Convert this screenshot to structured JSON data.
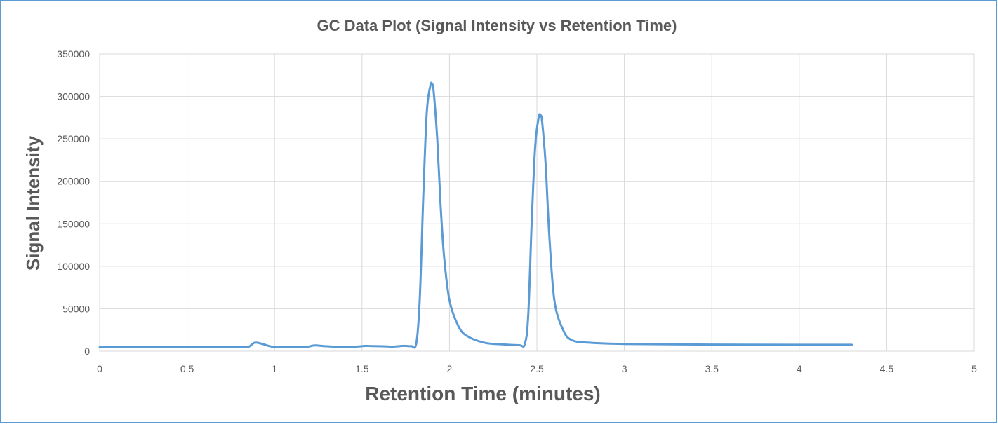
{
  "chart_data": {
    "type": "line",
    "title": "GC Data Plot (Signal Intensity vs Retention Time)",
    "xlabel": "Retention Time (minutes)",
    "ylabel": "Signal Intensity",
    "xlim": [
      0,
      5
    ],
    "ylim": [
      0,
      350000
    ],
    "x_ticks": [
      "0",
      "0.5",
      "1",
      "1.5",
      "2",
      "2.5",
      "3",
      "3.5",
      "4",
      "4.5",
      "5"
    ],
    "y_ticks": [
      "0",
      "50000",
      "100000",
      "150000",
      "200000",
      "250000",
      "300000",
      "350000"
    ],
    "grid": true,
    "legend": "none",
    "colors": {
      "series": "#5b9bd5",
      "grid": "#d9d9d9",
      "frame": "#5b9bd5",
      "title": "#595959",
      "tick": "#595959"
    },
    "series": [
      {
        "x": [
          0,
          0.2,
          0.4,
          0.6,
          0.8,
          0.85,
          0.88,
          0.9,
          0.93,
          0.97,
          1.0,
          1.1,
          1.18,
          1.23,
          1.28,
          1.35,
          1.45,
          1.52,
          1.56,
          1.62,
          1.68,
          1.74,
          1.78,
          1.81,
          1.83,
          1.85,
          1.87,
          1.89,
          1.9,
          1.91,
          1.93,
          1.95,
          1.97,
          2.0,
          2.05,
          2.1,
          2.2,
          2.3,
          2.4,
          2.43,
          2.45,
          2.47,
          2.49,
          2.51,
          2.52,
          2.53,
          2.55,
          2.57,
          2.6,
          2.65,
          2.7,
          2.8,
          3.0,
          3.5,
          4.0,
          4.3
        ],
        "y": [
          4500,
          4500,
          4500,
          4600,
          4700,
          5000,
          9500,
          10000,
          8500,
          6000,
          5200,
          5000,
          5000,
          6800,
          6000,
          5300,
          5200,
          6200,
          6000,
          5800,
          5400,
          6300,
          6000,
          9000,
          60000,
          180000,
          280000,
          312000,
          315000,
          305000,
          250000,
          170000,
          110000,
          60000,
          30000,
          18000,
          10000,
          8000,
          7000,
          8000,
          40000,
          150000,
          240000,
          275000,
          278000,
          270000,
          220000,
          140000,
          60000,
          25000,
          13000,
          10000,
          8500,
          7800,
          7500,
          7500
        ]
      }
    ]
  }
}
